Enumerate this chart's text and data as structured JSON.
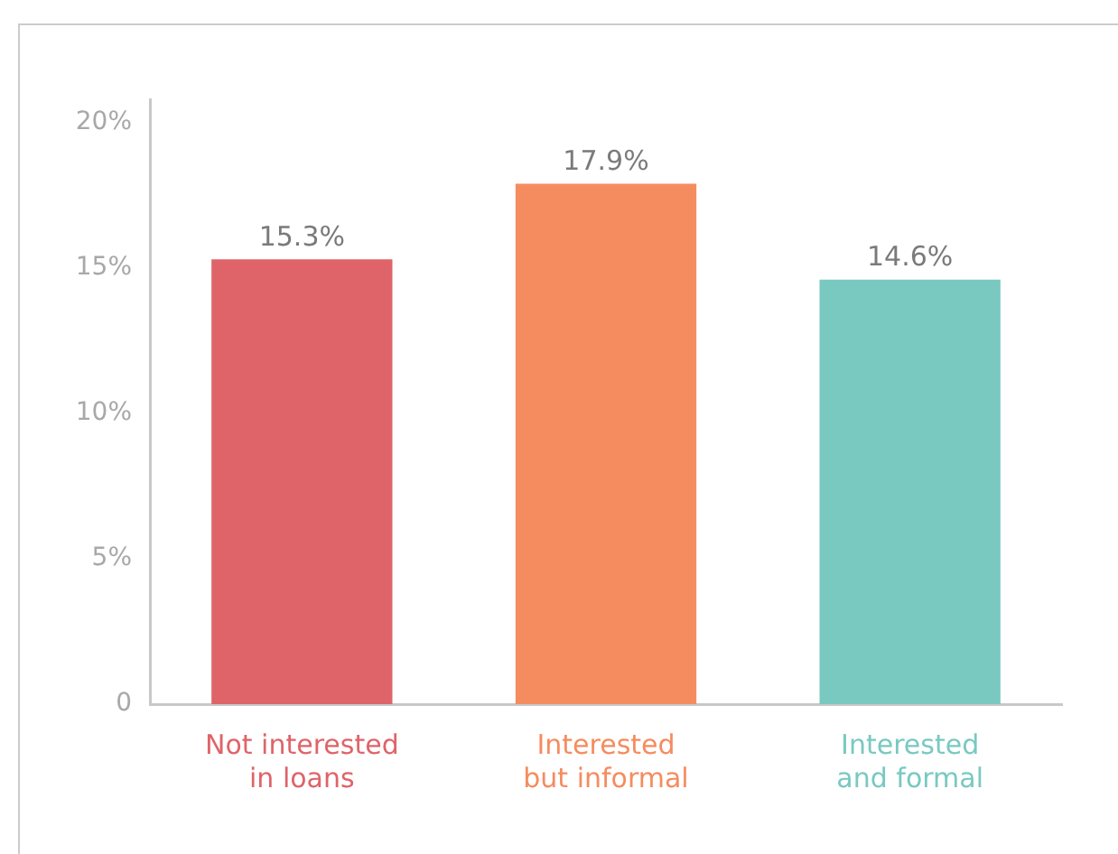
{
  "chart_data": {
    "type": "bar",
    "categories": [
      "Not interested\nin loans",
      "Interested\nbut informal",
      "Interested\nand formal"
    ],
    "values": [
      15.3,
      17.9,
      14.6
    ],
    "value_labels": [
      "15.3%",
      "17.9%",
      "14.6%"
    ],
    "colors": [
      "#df6469",
      "#f58c5f",
      "#79c9c1"
    ],
    "ylim": [
      0,
      20.8
    ],
    "yticks": [
      0,
      {
        "value": 5,
        "label": "5%"
      },
      {
        "value": 10,
        "label": "10%"
      },
      {
        "value": 15,
        "label": "15%"
      },
      {
        "value": 20,
        "label": "20%"
      }
    ]
  }
}
